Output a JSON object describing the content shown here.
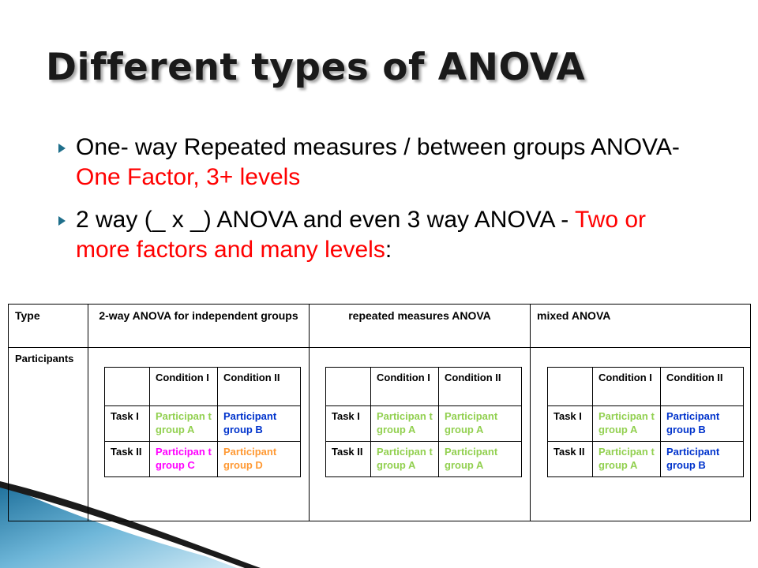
{
  "slide": {
    "title": "Different types of ANOVA",
    "bullets": [
      {
        "text": "One- way Repeated measures / between groups ANOVA- ",
        "highlight": "One Factor, 3+ levels",
        "suffix": ""
      },
      {
        "text": "2 way (_ x _) ANOVA and even 3 way ANOVA - ",
        "highlight": "Two or more factors and many levels",
        "suffix": ":"
      }
    ],
    "colors": {
      "highlight": "#ff0000",
      "green": "#92d050",
      "blue": "#0033cc",
      "magenta": "#ff00ff",
      "orange": "#ff9933",
      "accent": "#1f6f8b"
    }
  },
  "table": {
    "headers": [
      "Type",
      "2-way ANOVA for independent groups",
      "repeated measures ANOVA",
      "mixed ANOVA"
    ],
    "row_label": "Participants",
    "inner_headers": [
      "Condition I",
      "Condition II"
    ],
    "inner_row_labels": [
      "Task I",
      "Task II"
    ],
    "designs": [
      {
        "cells": [
          [
            "Participan t group A",
            "Participant group B"
          ],
          [
            "Participan t group C",
            "Participant group D"
          ]
        ]
      },
      {
        "cells": [
          [
            "Participan t group A",
            "Participant group A"
          ],
          [
            "Participan t group A",
            "Participant group A"
          ]
        ]
      },
      {
        "cells": [
          [
            "Participan t group A",
            "Participant group B"
          ],
          [
            "Participan t group A",
            "Participant group B"
          ]
        ]
      }
    ]
  }
}
